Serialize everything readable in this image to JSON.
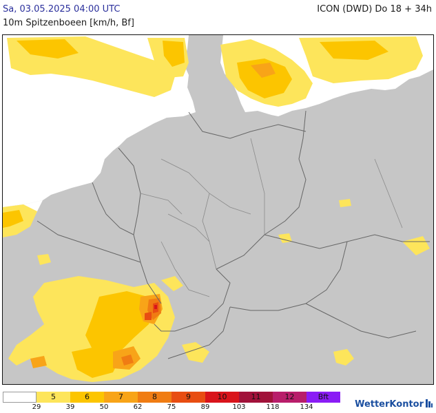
{
  "header": {
    "datetime": "Sa, 03.05.2025 04:00 UTC",
    "subtitle": "10m Spitzenboeen [km/h, Bf]",
    "model": "ICON (DWD) Do 18 + 34h"
  },
  "legend": {
    "cells": [
      {
        "label": "",
        "color": "#ffffff"
      },
      {
        "label": "5",
        "color": "#fde55b"
      },
      {
        "label": "6",
        "color": "#fcc500"
      },
      {
        "label": "7",
        "color": "#f8a418"
      },
      {
        "label": "8",
        "color": "#f07c13"
      },
      {
        "label": "9",
        "color": "#e84d12"
      },
      {
        "label": "10",
        "color": "#d9141b"
      },
      {
        "label": "11",
        "color": "#a1123a"
      },
      {
        "label": "12",
        "color": "#b81d6a"
      },
      {
        "label": "Bft",
        "color": "#8a1cf5"
      }
    ],
    "ticks": [
      "29",
      "39",
      "50",
      "62",
      "75",
      "89",
      "103",
      "118",
      "134"
    ]
  },
  "brand": {
    "name": "WetterKontor"
  },
  "colors": {
    "land": "#c6c6c6",
    "sea": "#ffffff",
    "border": "#666666"
  }
}
